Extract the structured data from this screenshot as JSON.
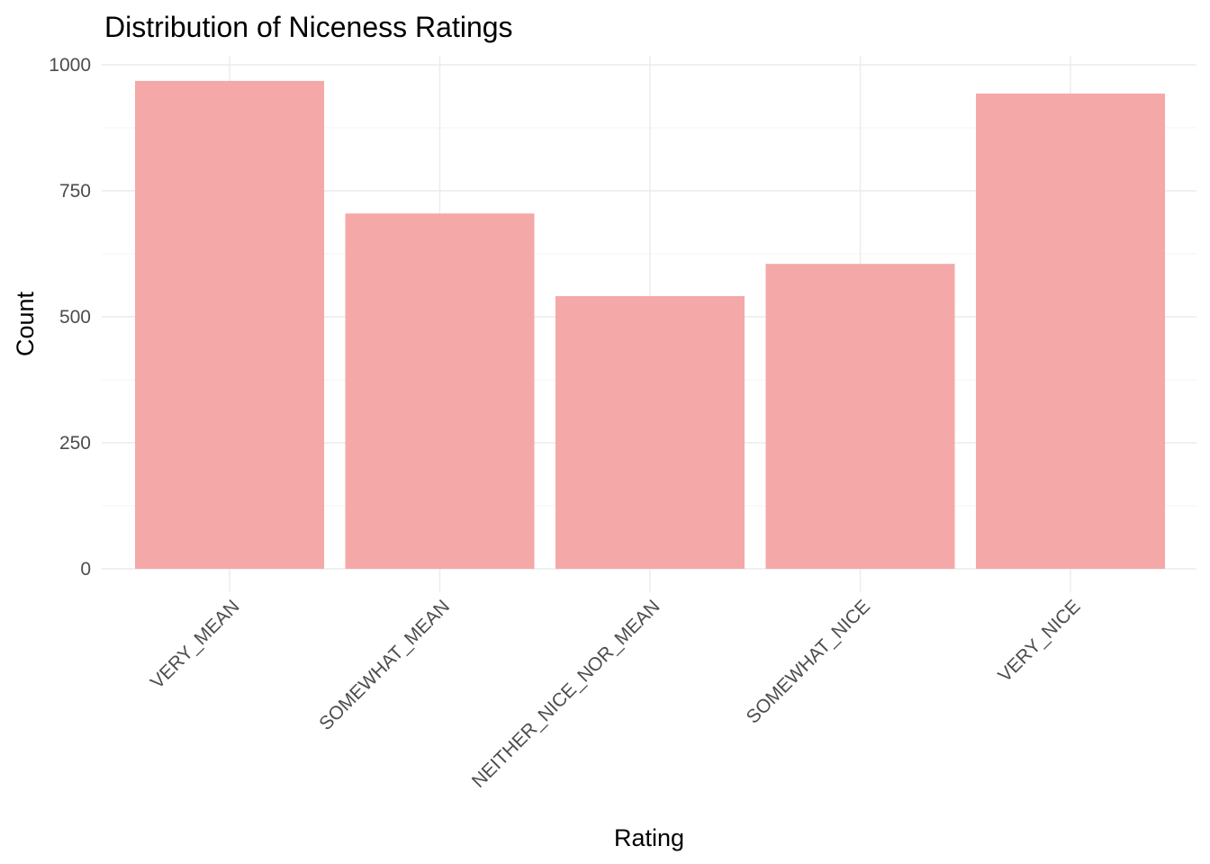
{
  "chart_data": {
    "type": "bar",
    "title": "Distribution of Niceness Ratings",
    "xlabel": "Rating",
    "ylabel": "Count",
    "categories": [
      "VERY_MEAN",
      "SOMEWHAT_MEAN",
      "NEITHER_NICE_NOR_MEAN",
      "SOMEWHAT_NICE",
      "VERY_NICE"
    ],
    "values": [
      968,
      705,
      541,
      605,
      943
    ],
    "ylim": [
      0,
      1000
    ],
    "yticks": [
      0,
      250,
      500,
      750,
      1000
    ],
    "ytick_labels": [
      "0",
      "250",
      "500",
      "750",
      "1000"
    ],
    "grid": true,
    "legend": "none",
    "bar_color": "#F4A6A6"
  }
}
